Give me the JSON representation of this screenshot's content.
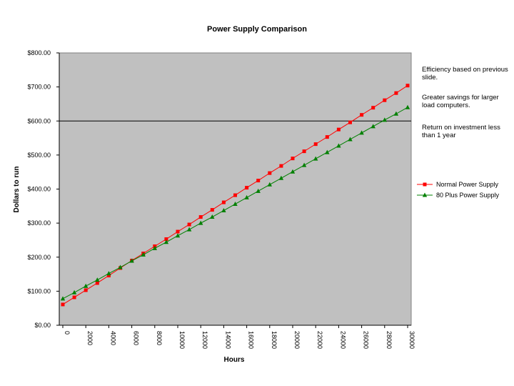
{
  "chart_data": {
    "type": "line",
    "title": "Power Supply Comparison",
    "xlabel": "Hours",
    "ylabel": "Dollars to run",
    "xlim": [
      0,
      30000
    ],
    "ylim": [
      0,
      800
    ],
    "x_ticks": [
      0,
      2000,
      4000,
      6000,
      8000,
      10000,
      12000,
      14000,
      16000,
      18000,
      20000,
      22000,
      24000,
      26000,
      28000,
      30000
    ],
    "y_ticks": [
      0,
      100,
      200,
      300,
      400,
      500,
      600,
      700,
      800
    ],
    "y_tick_labels": [
      "$0.00",
      "$100.00",
      "$200.00",
      "$300.00",
      "$400.00",
      "$500.00",
      "$600.00",
      "$700.00",
      "$800.00"
    ],
    "reference_line_y": 600,
    "grid": false,
    "legend_position": "right",
    "plot_background": "#c0c0c0",
    "series": [
      {
        "name": "Normal Power Supply",
        "color": "#ff0000",
        "marker": "square",
        "x": [
          0,
          1000,
          2000,
          3000,
          4000,
          5000,
          6000,
          7000,
          8000,
          9000,
          10000,
          11000,
          12000,
          13000,
          14000,
          15000,
          16000,
          17000,
          18000,
          19000,
          20000,
          21000,
          22000,
          23000,
          24000,
          25000,
          26000,
          27000,
          28000,
          29000,
          30000
        ],
        "y": [
          61,
          82,
          103,
          124,
          146,
          168,
          190,
          211,
          232,
          253,
          275,
          296,
          318,
          339,
          361,
          382,
          404,
          425,
          447,
          468,
          490,
          511,
          532,
          553,
          575,
          596,
          618,
          639,
          661,
          682,
          704
        ]
      },
      {
        "name": "80 Plus Power Supply",
        "color": "#008000",
        "marker": "triangle",
        "x": [
          0,
          1000,
          2000,
          3000,
          4000,
          5000,
          6000,
          7000,
          8000,
          9000,
          10000,
          11000,
          12000,
          13000,
          14000,
          15000,
          16000,
          17000,
          18000,
          19000,
          20000,
          21000,
          22000,
          23000,
          24000,
          25000,
          26000,
          27000,
          28000,
          29000,
          30000
        ],
        "y": [
          78,
          96,
          115,
          133,
          152,
          170,
          189,
          207,
          226,
          244,
          263,
          281,
          300,
          318,
          337,
          356,
          375,
          394,
          413,
          432,
          451,
          470,
          489,
          508,
          527,
          546,
          565,
          584,
          603,
          621,
          640
        ]
      }
    ],
    "annotations": [
      "Efficiency based on previous slide.",
      "Greater savings for larger load computers.",
      "Return on investment less than 1 year"
    ]
  }
}
